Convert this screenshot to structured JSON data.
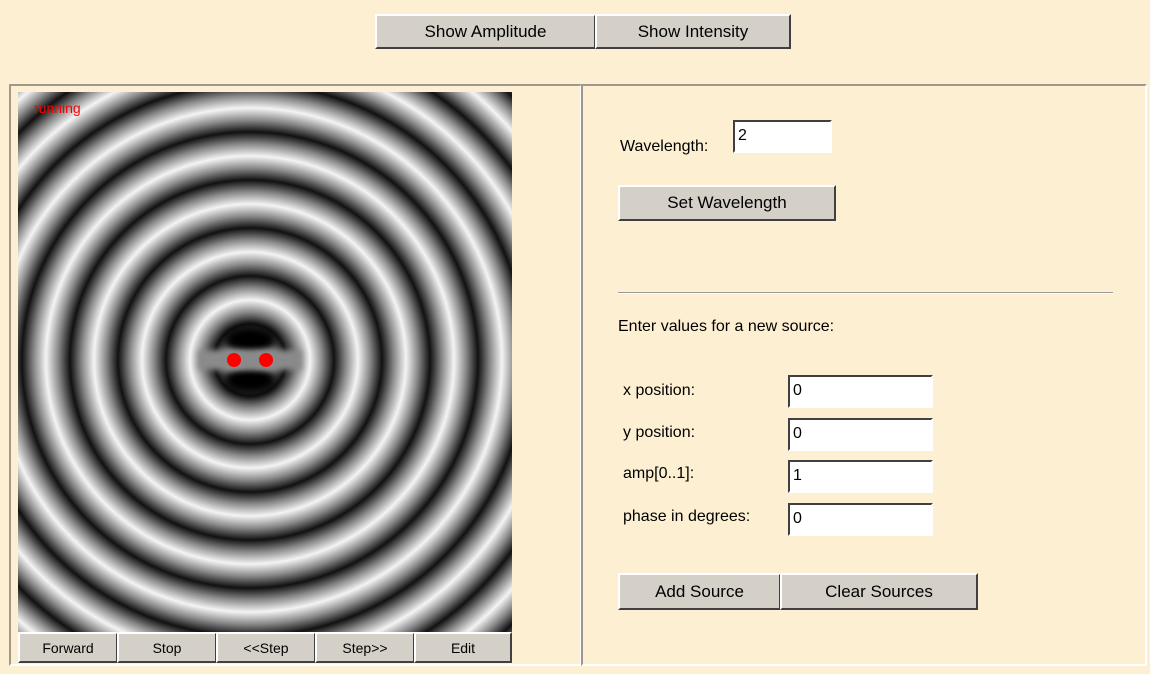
{
  "top_buttons": [
    "Show Amplitude",
    "Show Intensity"
  ],
  "status": "running",
  "controls": [
    "Forward",
    "Stop",
    "<<Step",
    "Step>>",
    "Edit"
  ],
  "wavelength": {
    "label": "Wavelength:",
    "value": "2",
    "button": "Set Wavelength"
  },
  "source_form": {
    "heading": "Enter values for a new source:",
    "fields": [
      {
        "label": "x position:",
        "value": "0"
      },
      {
        "label": "y position:",
        "value": "0"
      },
      {
        "label": "amp[0..1]:",
        "value": "1"
      },
      {
        "label": "phase in degrees:",
        "value": "0"
      }
    ],
    "buttons": [
      "Add Source",
      "Clear Sources"
    ]
  }
}
